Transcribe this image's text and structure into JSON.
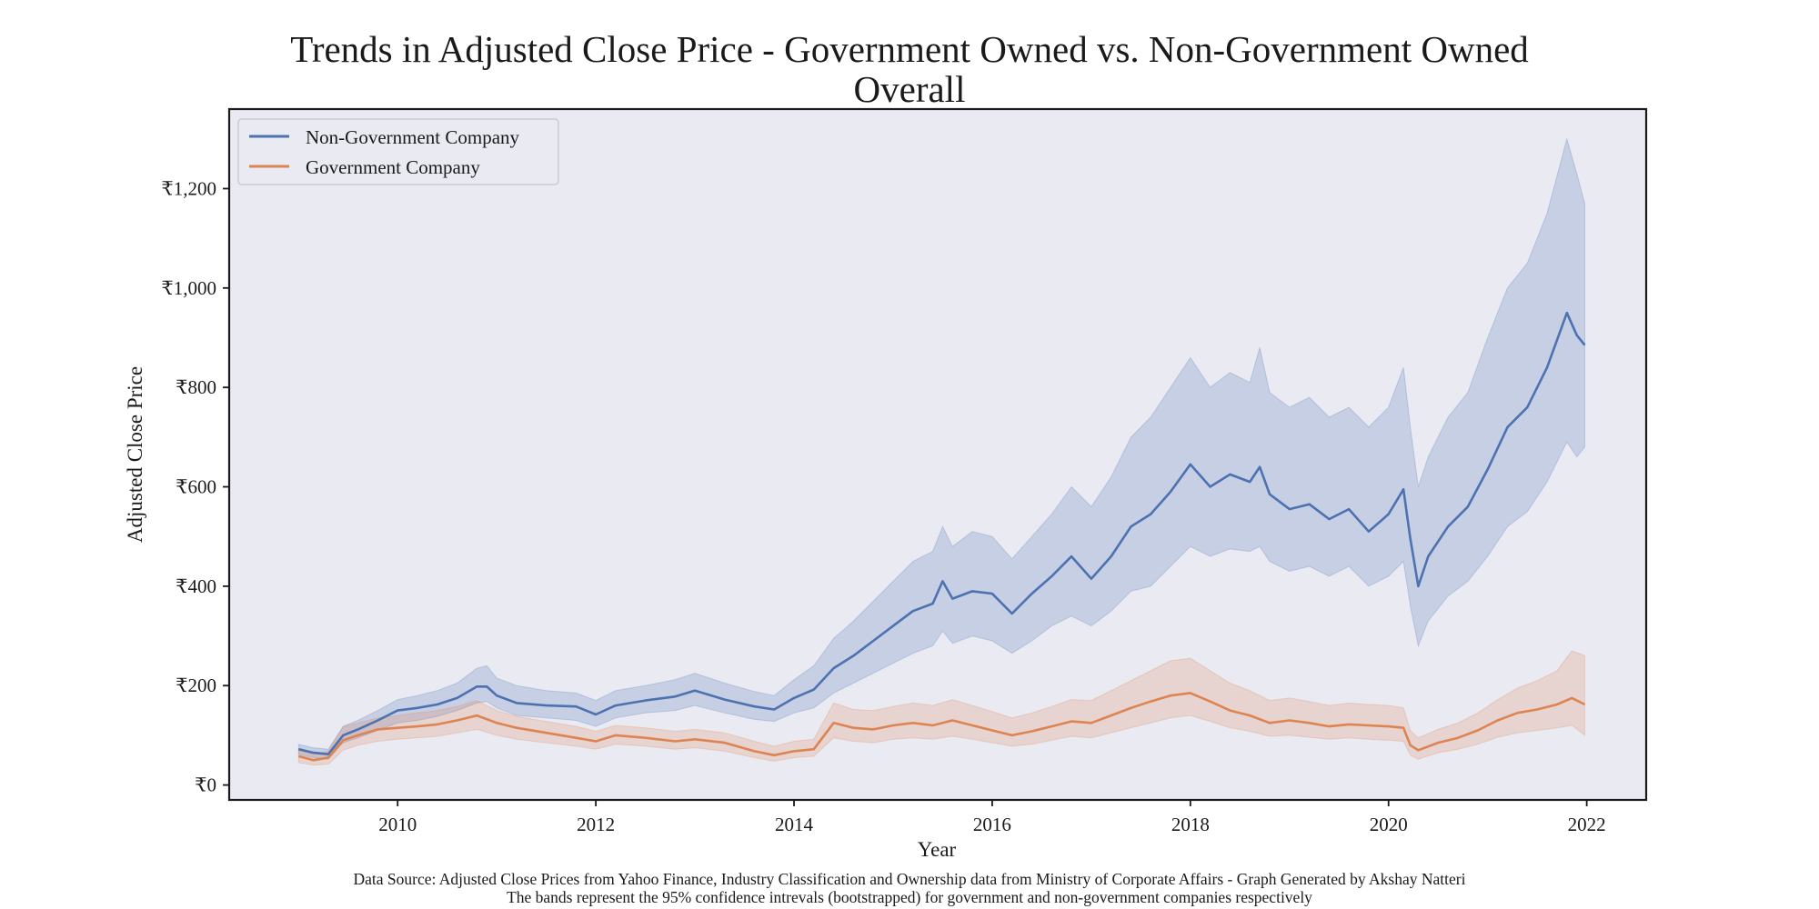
{
  "chart_data": {
    "type": "line",
    "title_line1": "Trends in Adjusted Close Price - Government Owned vs. Non-Government Owned",
    "title_line2": "Overall",
    "xlabel": "Year",
    "ylabel": "Adjusted Close Price",
    "xlim": [
      2008.3,
      2022.6
    ],
    "ylim": [
      -30,
      1360
    ],
    "x_ticks": [
      2010,
      2012,
      2014,
      2016,
      2018,
      2020,
      2022
    ],
    "x_tick_labels": [
      "2010",
      "2012",
      "2014",
      "2016",
      "2018",
      "2020",
      "2022"
    ],
    "y_ticks": [
      0,
      200,
      400,
      600,
      800,
      1000,
      1200
    ],
    "y_tick_labels": [
      "₹0",
      "₹200",
      "₹400",
      "₹600",
      "₹800",
      "₹1,000",
      "₹1,200"
    ],
    "legend_position": "top-left",
    "grid": false,
    "background_color": "#eaeaf2",
    "series": [
      {
        "name": "Non-Government Company",
        "color": "#4c72b0",
        "band": "95% confidence interval",
        "points": [
          [
            2009.0,
            72,
            62,
            82
          ],
          [
            2009.15,
            65,
            55,
            75
          ],
          [
            2009.3,
            62,
            52,
            72
          ],
          [
            2009.45,
            100,
            85,
            118
          ],
          [
            2009.6,
            112,
            95,
            130
          ],
          [
            2009.8,
            130,
            110,
            150
          ],
          [
            2010.0,
            150,
            125,
            172
          ],
          [
            2010.2,
            155,
            130,
            180
          ],
          [
            2010.4,
            162,
            138,
            190
          ],
          [
            2010.6,
            175,
            150,
            205
          ],
          [
            2010.8,
            198,
            165,
            235
          ],
          [
            2010.9,
            198,
            168,
            240
          ],
          [
            2011.0,
            180,
            155,
            215
          ],
          [
            2011.2,
            165,
            140,
            200
          ],
          [
            2011.5,
            160,
            135,
            190
          ],
          [
            2011.8,
            158,
            130,
            185
          ],
          [
            2012.0,
            142,
            118,
            170
          ],
          [
            2012.2,
            160,
            135,
            190
          ],
          [
            2012.5,
            170,
            145,
            200
          ],
          [
            2012.8,
            178,
            150,
            212
          ],
          [
            2013.0,
            190,
            160,
            225
          ],
          [
            2013.3,
            172,
            145,
            205
          ],
          [
            2013.6,
            158,
            132,
            188
          ],
          [
            2013.8,
            152,
            128,
            180
          ],
          [
            2014.0,
            175,
            145,
            212
          ],
          [
            2014.2,
            192,
            155,
            240
          ],
          [
            2014.4,
            235,
            185,
            295
          ],
          [
            2014.6,
            260,
            205,
            330
          ],
          [
            2014.8,
            290,
            225,
            370
          ],
          [
            2015.0,
            320,
            245,
            410
          ],
          [
            2015.2,
            350,
            265,
            450
          ],
          [
            2015.4,
            365,
            280,
            470
          ],
          [
            2015.5,
            410,
            310,
            520
          ],
          [
            2015.6,
            375,
            285,
            480
          ],
          [
            2015.8,
            390,
            300,
            510
          ],
          [
            2016.0,
            385,
            290,
            500
          ],
          [
            2016.2,
            345,
            265,
            455
          ],
          [
            2016.4,
            385,
            290,
            500
          ],
          [
            2016.6,
            420,
            320,
            545
          ],
          [
            2016.8,
            460,
            340,
            600
          ],
          [
            2017.0,
            415,
            320,
            560
          ],
          [
            2017.2,
            460,
            350,
            620
          ],
          [
            2017.4,
            520,
            390,
            700
          ],
          [
            2017.6,
            545,
            400,
            740
          ],
          [
            2017.8,
            590,
            440,
            800
          ],
          [
            2018.0,
            645,
            480,
            860
          ],
          [
            2018.2,
            600,
            460,
            800
          ],
          [
            2018.4,
            625,
            475,
            830
          ],
          [
            2018.6,
            610,
            470,
            810
          ],
          [
            2018.7,
            640,
            480,
            880
          ],
          [
            2018.8,
            585,
            450,
            790
          ],
          [
            2019.0,
            555,
            430,
            760
          ],
          [
            2019.2,
            565,
            440,
            780
          ],
          [
            2019.4,
            535,
            420,
            740
          ],
          [
            2019.6,
            555,
            440,
            760
          ],
          [
            2019.8,
            510,
            400,
            720
          ],
          [
            2020.0,
            545,
            420,
            760
          ],
          [
            2020.15,
            595,
            450,
            840
          ],
          [
            2020.22,
            495,
            360,
            720
          ],
          [
            2020.3,
            400,
            280,
            600
          ],
          [
            2020.4,
            460,
            330,
            660
          ],
          [
            2020.6,
            520,
            380,
            740
          ],
          [
            2020.8,
            560,
            410,
            790
          ],
          [
            2021.0,
            635,
            460,
            900
          ],
          [
            2021.2,
            720,
            520,
            1000
          ],
          [
            2021.4,
            760,
            550,
            1050
          ],
          [
            2021.6,
            840,
            610,
            1150
          ],
          [
            2021.8,
            950,
            690,
            1300
          ],
          [
            2021.9,
            905,
            660,
            1230
          ],
          [
            2021.98,
            885,
            680,
            1170
          ]
        ]
      },
      {
        "name": "Government Company",
        "color": "#dd8452",
        "band": "95% confidence interval",
        "points": [
          [
            2009.0,
            58,
            45,
            70
          ],
          [
            2009.15,
            50,
            40,
            62
          ],
          [
            2009.3,
            55,
            42,
            68
          ],
          [
            2009.45,
            90,
            70,
            118
          ],
          [
            2009.6,
            100,
            80,
            125
          ],
          [
            2009.8,
            112,
            88,
            135
          ],
          [
            2010.0,
            115,
            92,
            140
          ],
          [
            2010.2,
            118,
            95,
            145
          ],
          [
            2010.4,
            122,
            98,
            150
          ],
          [
            2010.6,
            130,
            105,
            158
          ],
          [
            2010.8,
            140,
            112,
            170
          ],
          [
            2011.0,
            125,
            100,
            150
          ],
          [
            2011.2,
            115,
            92,
            138
          ],
          [
            2011.5,
            105,
            85,
            128
          ],
          [
            2011.8,
            95,
            78,
            118
          ],
          [
            2012.0,
            88,
            72,
            108
          ],
          [
            2012.2,
            100,
            82,
            120
          ],
          [
            2012.5,
            95,
            78,
            115
          ],
          [
            2012.8,
            88,
            72,
            108
          ],
          [
            2013.0,
            92,
            75,
            112
          ],
          [
            2013.3,
            85,
            68,
            105
          ],
          [
            2013.6,
            68,
            55,
            88
          ],
          [
            2013.8,
            60,
            48,
            78
          ],
          [
            2014.0,
            68,
            55,
            88
          ],
          [
            2014.2,
            72,
            58,
            92
          ],
          [
            2014.4,
            125,
            95,
            165
          ],
          [
            2014.6,
            115,
            88,
            152
          ],
          [
            2014.8,
            112,
            85,
            150
          ],
          [
            2015.0,
            120,
            92,
            158
          ],
          [
            2015.2,
            125,
            95,
            165
          ],
          [
            2015.4,
            120,
            92,
            160
          ],
          [
            2015.6,
            130,
            98,
            172
          ],
          [
            2015.8,
            120,
            92,
            160
          ],
          [
            2016.0,
            110,
            85,
            148
          ],
          [
            2016.2,
            100,
            78,
            135
          ],
          [
            2016.4,
            108,
            82,
            145
          ],
          [
            2016.6,
            118,
            90,
            158
          ],
          [
            2016.8,
            128,
            98,
            172
          ],
          [
            2017.0,
            125,
            95,
            170
          ],
          [
            2017.2,
            140,
            105,
            190
          ],
          [
            2017.4,
            155,
            115,
            210
          ],
          [
            2017.6,
            168,
            125,
            230
          ],
          [
            2017.8,
            180,
            135,
            250
          ],
          [
            2018.0,
            185,
            140,
            255
          ],
          [
            2018.2,
            168,
            128,
            230
          ],
          [
            2018.4,
            150,
            115,
            205
          ],
          [
            2018.6,
            140,
            108,
            190
          ],
          [
            2018.8,
            125,
            98,
            170
          ],
          [
            2019.0,
            130,
            100,
            175
          ],
          [
            2019.2,
            125,
            96,
            168
          ],
          [
            2019.4,
            118,
            92,
            160
          ],
          [
            2019.6,
            122,
            95,
            165
          ],
          [
            2019.8,
            120,
            92,
            162
          ],
          [
            2020.0,
            118,
            90,
            160
          ],
          [
            2020.15,
            115,
            88,
            155
          ],
          [
            2020.22,
            80,
            60,
            110
          ],
          [
            2020.3,
            70,
            52,
            95
          ],
          [
            2020.5,
            85,
            65,
            112
          ],
          [
            2020.7,
            95,
            72,
            125
          ],
          [
            2020.9,
            110,
            82,
            145
          ],
          [
            2021.1,
            130,
            96,
            172
          ],
          [
            2021.3,
            145,
            105,
            195
          ],
          [
            2021.5,
            152,
            110,
            210
          ],
          [
            2021.7,
            162,
            115,
            230
          ],
          [
            2021.85,
            175,
            120,
            270
          ],
          [
            2021.98,
            162,
            100,
            260
          ]
        ]
      }
    ]
  },
  "footnote_line1": "Data Source: Adjusted Close Prices from Yahoo Finance, Industry Classification and Ownership data from Ministry of Corporate Affairs  - Graph Generated by Akshay Natteri",
  "footnote_line2": "The bands represent the 95% confidence intrevals (bootstrapped) for government and non-government companies respectively"
}
